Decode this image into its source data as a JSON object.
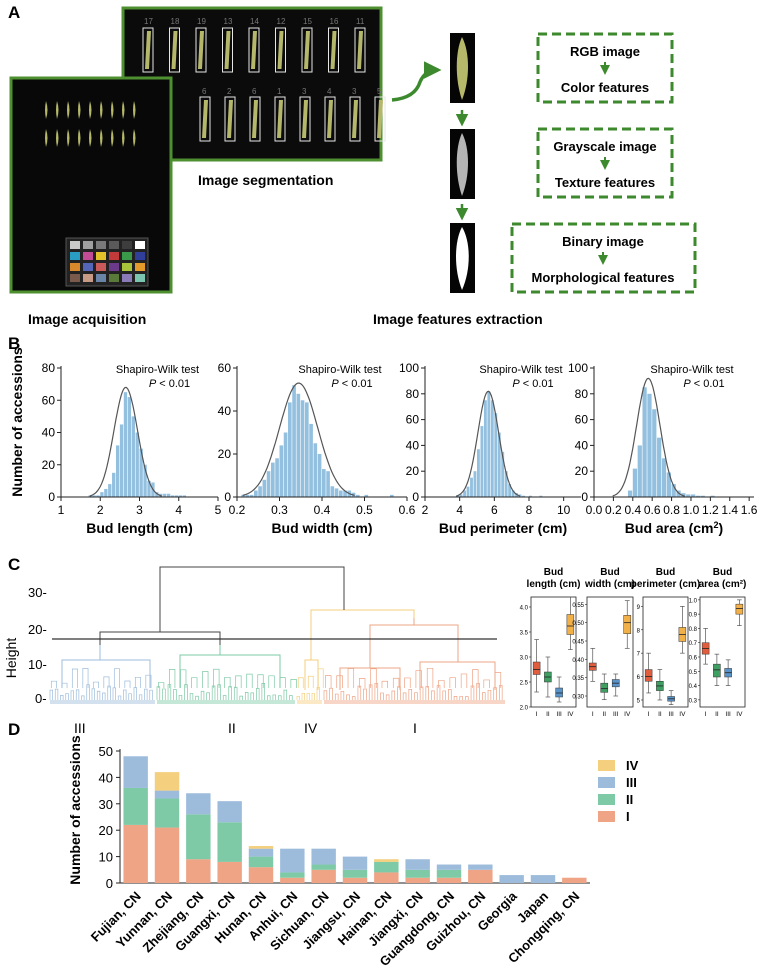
{
  "panels": {
    "a": {
      "letter": "A",
      "captions": {
        "acquisition": "Image acquisition",
        "segmentation": "Image segmentation",
        "extraction": "Image features extraction"
      },
      "segment_numbers_top": [
        "17",
        "18",
        "19",
        "13",
        "14",
        "12",
        "15",
        "16",
        "11"
      ],
      "segment_numbers_bottom": [
        "6",
        "2",
        "6",
        "1",
        "3",
        "4",
        "3",
        "5"
      ],
      "feature_boxes": [
        {
          "image": "RGB image",
          "feature": "Color features"
        },
        {
          "image": "Grayscale image",
          "feature": "Texture features"
        },
        {
          "image": "Binary image",
          "feature": "Morphological features"
        }
      ],
      "colors": {
        "frame_green": "#4e8f2f",
        "dash_green": "#3d8a2e",
        "bud": "#b5b86a"
      }
    },
    "b": {
      "letter": "B"
    },
    "c": {
      "letter": "C",
      "height_label": "Height",
      "cluster_labels": [
        "III",
        "II",
        "IV",
        "I"
      ],
      "y_ticks": [
        "30-",
        "20-",
        "10-",
        "0-"
      ]
    },
    "d": {
      "letter": "D"
    }
  },
  "chart_data": [
    {
      "type": "bar",
      "id": "B1",
      "xlabel": "Bud length (cm)",
      "ylabel": "Number of accessions",
      "annotation_line1": "Shapiro-Wilk test",
      "annotation_p": "P",
      "annotation_rest": " < 0.01",
      "xlim": [
        1,
        5
      ],
      "ylim": [
        0,
        80
      ],
      "xticks": [
        1,
        2,
        3,
        4,
        5
      ],
      "yticks": [
        0,
        20,
        40,
        60,
        80
      ],
      "bins": [
        [
          1.7,
          1
        ],
        [
          1.8,
          1
        ],
        [
          1.9,
          1
        ],
        [
          2.0,
          3
        ],
        [
          2.1,
          5
        ],
        [
          2.2,
          8
        ],
        [
          2.3,
          15
        ],
        [
          2.4,
          32
        ],
        [
          2.5,
          45
        ],
        [
          2.6,
          65
        ],
        [
          2.7,
          62
        ],
        [
          2.8,
          50
        ],
        [
          2.9,
          40
        ],
        [
          3.0,
          30
        ],
        [
          3.1,
          20
        ],
        [
          3.2,
          10
        ],
        [
          3.3,
          9
        ],
        [
          3.4,
          3
        ],
        [
          3.5,
          2
        ],
        [
          3.6,
          2
        ],
        [
          3.7,
          2
        ],
        [
          3.8,
          1
        ],
        [
          3.9,
          1
        ],
        [
          4.0,
          1
        ],
        [
          4.1,
          1
        ]
      ],
      "bin_width": 0.1,
      "normal_curve": {
        "mean": 2.65,
        "sd": 0.3,
        "peak": 68
      }
    },
    {
      "type": "bar",
      "id": "B2",
      "xlabel": "Bud width (cm)",
      "annotation_line1": "Shapiro-Wilk test",
      "annotation_p": "P",
      "annotation_rest": " < 0.01",
      "xlim": [
        0.2,
        0.6
      ],
      "ylim": [
        0,
        60
      ],
      "xticks": [
        0.2,
        0.3,
        0.4,
        0.5,
        0.6
      ],
      "yticks": [
        0,
        20,
        40,
        60
      ],
      "bins": [
        [
          0.21,
          1
        ],
        [
          0.22,
          1
        ],
        [
          0.23,
          1
        ],
        [
          0.24,
          3
        ],
        [
          0.25,
          5
        ],
        [
          0.26,
          8
        ],
        [
          0.27,
          12
        ],
        [
          0.28,
          16
        ],
        [
          0.29,
          18
        ],
        [
          0.3,
          24
        ],
        [
          0.31,
          30
        ],
        [
          0.32,
          44
        ],
        [
          0.33,
          52
        ],
        [
          0.34,
          48
        ],
        [
          0.35,
          45
        ],
        [
          0.36,
          44
        ],
        [
          0.37,
          34
        ],
        [
          0.38,
          25
        ],
        [
          0.39,
          20
        ],
        [
          0.4,
          13
        ],
        [
          0.41,
          12
        ],
        [
          0.42,
          5
        ],
        [
          0.43,
          4
        ],
        [
          0.44,
          3
        ],
        [
          0.45,
          3
        ],
        [
          0.46,
          3
        ],
        [
          0.47,
          2
        ],
        [
          0.48,
          1
        ],
        [
          0.5,
          1
        ],
        [
          0.56,
          1
        ]
      ],
      "bin_width": 0.01,
      "normal_curve": {
        "mean": 0.345,
        "sd": 0.045,
        "peak": 53
      }
    },
    {
      "type": "bar",
      "id": "B3",
      "xlabel": "Bud perimeter (cm)",
      "annotation_line1": "Shapiro-Wilk test",
      "annotation_p": "P",
      "annotation_rest": " < 0.01",
      "xlim": [
        2,
        11
      ],
      "ylim": [
        0,
        100
      ],
      "xticks": [
        2,
        4,
        6,
        8,
        10
      ],
      "yticks": [
        0,
        20,
        40,
        60,
        80,
        100
      ],
      "bins": [
        [
          3.8,
          1
        ],
        [
          4.0,
          2
        ],
        [
          4.2,
          5
        ],
        [
          4.4,
          8
        ],
        [
          4.6,
          15
        ],
        [
          4.8,
          20
        ],
        [
          5.0,
          37
        ],
        [
          5.2,
          55
        ],
        [
          5.4,
          75
        ],
        [
          5.6,
          82
        ],
        [
          5.8,
          75
        ],
        [
          6.0,
          65
        ],
        [
          6.2,
          50
        ],
        [
          6.4,
          35
        ],
        [
          6.6,
          20
        ],
        [
          6.8,
          10
        ],
        [
          7.0,
          5
        ],
        [
          7.2,
          3
        ],
        [
          7.4,
          2
        ],
        [
          7.6,
          1
        ],
        [
          8.0,
          1
        ],
        [
          8.6,
          1
        ]
      ],
      "bin_width": 0.2,
      "normal_curve": {
        "mean": 5.65,
        "sd": 0.6,
        "peak": 82
      }
    },
    {
      "type": "bar",
      "id": "B4",
      "xlabel": "Bud area (cm",
      "xlabel_sup": "2",
      "xlabel_end": ")",
      "annotation_line1": "Shapiro-Wilk test",
      "annotation_p": "P",
      "annotation_rest": " < 0.01",
      "xlim": [
        0.0,
        1.65
      ],
      "ylim": [
        0,
        100
      ],
      "xticks": [
        0.0,
        0.2,
        0.4,
        0.6,
        0.8,
        1.0,
        1.2,
        1.4,
        1.6
      ],
      "yticks": [
        0,
        20,
        40,
        60,
        80,
        100
      ],
      "bins": [
        [
          0.35,
          5
        ],
        [
          0.4,
          22
        ],
        [
          0.45,
          40
        ],
        [
          0.5,
          85
        ],
        [
          0.55,
          80
        ],
        [
          0.6,
          68
        ],
        [
          0.65,
          46
        ],
        [
          0.7,
          30
        ],
        [
          0.75,
          19
        ],
        [
          0.8,
          10
        ],
        [
          0.85,
          5
        ],
        [
          0.9,
          3
        ],
        [
          0.95,
          2
        ],
        [
          1.0,
          2
        ],
        [
          1.05,
          1
        ],
        [
          1.1,
          1
        ],
        [
          1.2,
          1
        ]
      ],
      "bin_width": 0.05,
      "normal_curve": {
        "mean": 0.56,
        "sd": 0.12,
        "peak": 92
      }
    },
    {
      "type": "box",
      "id": "C-length",
      "title_lines": [
        "Bud",
        "length (cm)"
      ],
      "ylim": [
        2.0,
        4.2
      ],
      "yticks": [
        "2.0",
        "2.5",
        "3.0",
        "3.5",
        "4.0"
      ],
      "ytick_values": [
        2.0,
        2.5,
        3.0,
        3.5,
        4.0
      ],
      "groups": [
        "I",
        "II",
        "III",
        "IV"
      ],
      "boxes": [
        {
          "min": 2.3,
          "q1": 2.65,
          "median": 2.75,
          "q3": 2.9,
          "max": 3.35
        },
        {
          "min": 2.2,
          "q1": 2.5,
          "median": 2.6,
          "q3": 2.7,
          "max": 3.0
        },
        {
          "min": 2.1,
          "q1": 2.2,
          "median": 2.28,
          "q3": 2.38,
          "max": 2.6
        },
        {
          "min": 3.15,
          "q1": 3.45,
          "median": 3.62,
          "q3": 3.85,
          "max": 4.2
        }
      ]
    },
    {
      "type": "box",
      "id": "C-width",
      "title_lines": [
        "Bud",
        "width (cm)"
      ],
      "ylim": [
        0.27,
        0.57
      ],
      "yticks": [
        "0.30",
        "0.35",
        "0.40",
        "0.45",
        "0.50",
        "0.55"
      ],
      "ytick_values": [
        0.3,
        0.35,
        0.4,
        0.45,
        0.5,
        0.55
      ],
      "groups": [
        "I",
        "II",
        "III",
        "IV"
      ],
      "boxes": [
        {
          "min": 0.34,
          "q1": 0.37,
          "median": 0.38,
          "q3": 0.39,
          "max": 0.43
        },
        {
          "min": 0.29,
          "q1": 0.31,
          "median": 0.32,
          "q3": 0.335,
          "max": 0.36
        },
        {
          "min": 0.3,
          "q1": 0.325,
          "median": 0.335,
          "q3": 0.345,
          "max": 0.36
        },
        {
          "min": 0.43,
          "q1": 0.47,
          "median": 0.5,
          "q3": 0.52,
          "max": 0.56
        }
      ]
    },
    {
      "type": "box",
      "id": "C-perimeter",
      "title_lines": [
        "Bud",
        "perimeter (cm)"
      ],
      "ylim": [
        4.7,
        9.4
      ],
      "yticks": [
        "5",
        "6",
        "7",
        "8",
        "9"
      ],
      "ytick_values": [
        5,
        6,
        7,
        8,
        9
      ],
      "groups": [
        "I",
        "II",
        "III",
        "IV"
      ],
      "boxes": [
        {
          "min": 5.3,
          "q1": 5.8,
          "median": 6.0,
          "q3": 6.3,
          "max": 7.0
        },
        {
          "min": 5.0,
          "q1": 5.4,
          "median": 5.6,
          "q3": 5.8,
          "max": 6.3
        },
        {
          "min": 4.8,
          "q1": 4.95,
          "median": 5.05,
          "q3": 5.15,
          "max": 5.4
        },
        {
          "min": 7.0,
          "q1": 7.5,
          "median": 7.8,
          "q3": 8.1,
          "max": 9.0
        }
      ]
    },
    {
      "type": "box",
      "id": "C-area",
      "title_lines": [
        "Bud",
        "area (cm²)"
      ],
      "ylim": [
        0.25,
        1.02
      ],
      "yticks": [
        "0.3",
        "0.4",
        "0.5",
        "0.6",
        "0.7",
        "0.8",
        "0.9",
        "1.0"
      ],
      "ytick_values": [
        0.3,
        0.4,
        0.5,
        0.6,
        0.7,
        0.8,
        0.9,
        1.0
      ],
      "groups": [
        "I",
        "II",
        "III",
        "IV"
      ],
      "boxes": [
        {
          "min": 0.55,
          "q1": 0.62,
          "median": 0.66,
          "q3": 0.7,
          "max": 0.8
        },
        {
          "min": 0.4,
          "q1": 0.46,
          "median": 0.51,
          "q3": 0.55,
          "max": 0.62
        },
        {
          "min": 0.4,
          "q1": 0.46,
          "median": 0.49,
          "q3": 0.52,
          "max": 0.58
        },
        {
          "min": 0.82,
          "q1": 0.9,
          "median": 0.94,
          "q3": 0.97,
          "max": 1.0
        }
      ]
    },
    {
      "type": "bar",
      "id": "D",
      "stacked": true,
      "ylabel": "Number of accessions",
      "ylim": [
        0,
        50
      ],
      "yticks": [
        0,
        10,
        20,
        30,
        40,
        50
      ],
      "categories": [
        "Fujian, CN",
        "Yunnan, CN",
        "Zhejiang, CN",
        "Guangxi, CN",
        "Hunan, CN",
        "Anhui, CN",
        "Sichuan, CN",
        "Jiangsu, CN",
        "Hainan, CN",
        "Jiangxi, CN",
        "Guangdong, CN",
        "Guizhou, CN",
        "Georgia",
        "Japan",
        "Chongqing, CN"
      ],
      "series": [
        {
          "name": "I",
          "color": "#eea485",
          "values": [
            22,
            21,
            9,
            8,
            6,
            2,
            5,
            2,
            4,
            2,
            2,
            5,
            0,
            0,
            2
          ]
        },
        {
          "name": "II",
          "color": "#7ec9a6",
          "values": [
            14,
            11,
            17,
            15,
            4,
            2,
            2,
            3,
            4,
            3,
            3,
            0,
            0,
            0,
            0
          ]
        },
        {
          "name": "III",
          "color": "#9dbcdc",
          "values": [
            12,
            3,
            8,
            8,
            3,
            9,
            6,
            5,
            0,
            4,
            2,
            2,
            3,
            3,
            0
          ]
        },
        {
          "name": "IV",
          "color": "#f4cf7d",
          "values": [
            0,
            7,
            0,
            0,
            1,
            0,
            0,
            0,
            1,
            0,
            0,
            0,
            0,
            0,
            0
          ]
        }
      ],
      "legend_order": [
        "IV",
        "III",
        "II",
        "I"
      ],
      "legend_position": "top-right"
    }
  ]
}
